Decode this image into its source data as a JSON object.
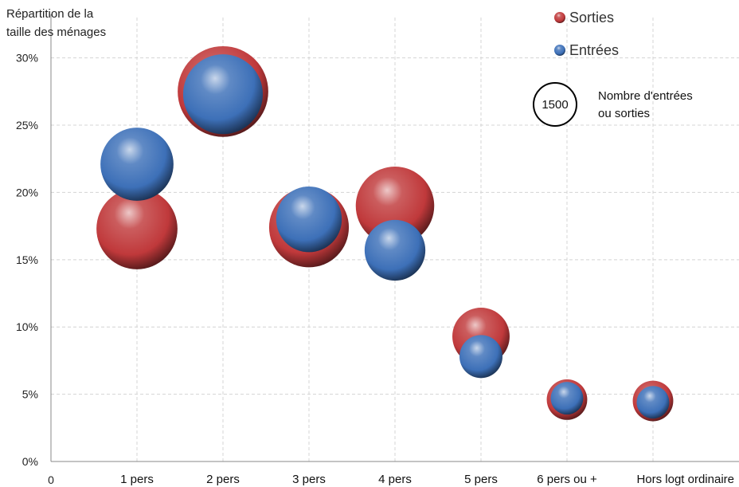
{
  "chart_data": {
    "type": "bubble",
    "ylabel_lines": [
      "Répartition de la",
      "taille des ménages"
    ],
    "ylim": [
      0,
      33
    ],
    "y_ticks": [
      0,
      5,
      10,
      15,
      20,
      25,
      30
    ],
    "y_tick_labels": [
      "0%",
      "5%",
      "10%",
      "15%",
      "20%",
      "25%",
      "30%"
    ],
    "x_origin_label": "0",
    "categories": [
      "1 pers",
      "2 pers",
      "3 pers",
      "4 pers",
      "5 pers",
      "6 pers ou +",
      "Hors logt ordinaire"
    ],
    "series": [
      {
        "name": "Sorties",
        "color": "#c0393b",
        "values": [
          17.3,
          27.5,
          17.4,
          19.0,
          9.3,
          4.6,
          4.5
        ],
        "sizes": [
          1600,
          2000,
          1550,
          1500,
          800,
          400,
          400
        ]
      },
      {
        "name": "Entrées",
        "color": "#3d70b8",
        "values": [
          22.1,
          27.3,
          18.0,
          15.7,
          7.8,
          4.7,
          4.4
        ],
        "sizes": [
          1300,
          1550,
          1050,
          900,
          450,
          260,
          260
        ]
      }
    ],
    "size_legend": {
      "value": "1500",
      "label_lines": [
        "Nombre d'entrées",
        "ou sorties"
      ]
    },
    "grid": true,
    "legend_position": "top-right"
  }
}
